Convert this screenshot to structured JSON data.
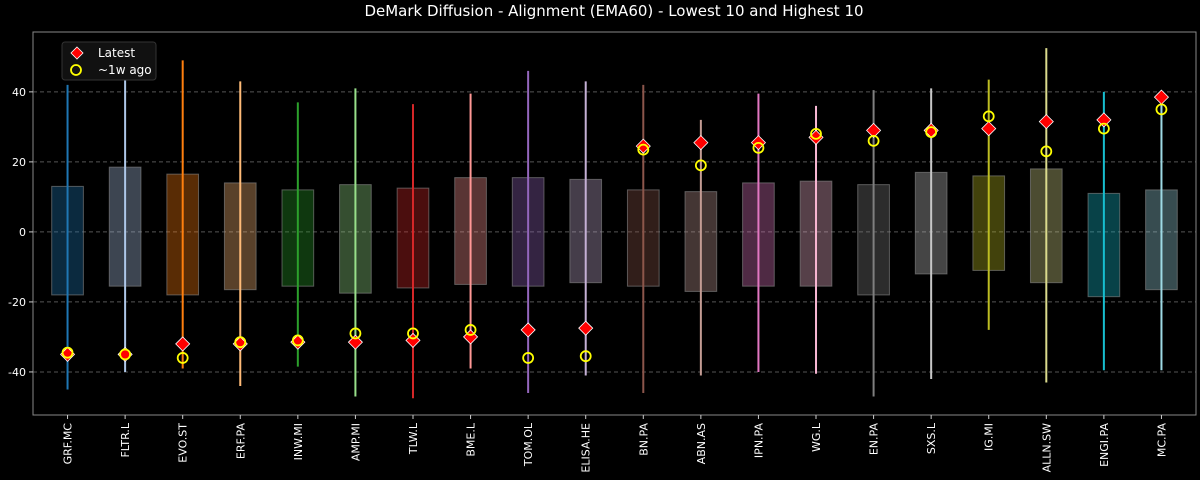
{
  "chart_data": {
    "type": "box-range",
    "title": "DeMark Diffusion - Alignment (EMA60) - Lowest 10 and Highest 10",
    "xlabel": "",
    "ylabel": "",
    "ylim": [
      -52.3,
      57.1
    ],
    "yticks": [
      -40,
      -20,
      0,
      20,
      40
    ],
    "grid": true,
    "legend": {
      "placement": "top-left",
      "entries": [
        {
          "label": "Latest",
          "marker": "diamond",
          "color": "#ff0000"
        },
        {
          "label": "~1w ago",
          "marker": "circle-open",
          "color": "#ffff00"
        }
      ]
    },
    "categories": [
      "GRF.MC",
      "FLTR.L",
      "EVO.ST",
      "ERF.PA",
      "INW.MI",
      "AMP.MI",
      "TLW.L",
      "BME.L",
      "TOM.OL",
      "ELISA.HE",
      "BN.PA",
      "ABN.AS",
      "IPN.PA",
      "WG.L",
      "EN.PA",
      "SXS.L",
      "IG.MI",
      "ALLN.SW",
      "ENGI.PA",
      "MC.PA"
    ],
    "colors": [
      "#1f77b4",
      "#aec7e8",
      "#ff7f0e",
      "#ffbb78",
      "#2ca02c",
      "#98df8a",
      "#d62728",
      "#ff9896",
      "#9467bd",
      "#c5b0d5",
      "#8c564b",
      "#c49c94",
      "#e377c2",
      "#f7b6d2",
      "#7f7f7f",
      "#c7c7c7",
      "#bcbd22",
      "#dbdb8d",
      "#17becf",
      "#9edae5"
    ],
    "range_max": [
      42,
      45,
      49,
      43,
      37,
      41,
      36.5,
      39.5,
      46,
      43,
      42,
      32,
      39.5,
      36,
      40.5,
      41,
      43.5,
      52.5,
      40,
      40
    ],
    "range_min": [
      -45,
      -40,
      -39,
      -44,
      -38.5,
      -47,
      -47.5,
      -39,
      -46,
      -41,
      -46,
      -41,
      -40,
      -40.5,
      -47,
      -42,
      -28,
      -43,
      -39.5,
      -39.5
    ],
    "box_high": [
      13,
      18.5,
      16.5,
      14,
      12,
      13.5,
      12.5,
      15.5,
      15.5,
      15,
      12,
      11.5,
      14,
      14.5,
      13.5,
      17,
      16,
      18,
      11,
      12
    ],
    "box_low": [
      -18,
      -15.5,
      -18,
      -16.5,
      -15.5,
      -17.5,
      -16,
      -15,
      -15.5,
      -14.5,
      -15.5,
      -17,
      -15.5,
      -15.5,
      -18,
      -12,
      -11,
      -14.5,
      -18.5,
      -16.5
    ],
    "latest": [
      -35,
      -35,
      -32,
      -32,
      -31.5,
      -31.5,
      -31,
      -30,
      -28,
      -27.5,
      24.5,
      25.5,
      25.5,
      27,
      29,
      29,
      29.5,
      31.5,
      32,
      38.5
    ],
    "week_ago": [
      -34.5,
      -35,
      -36,
      -31.5,
      -31,
      -29,
      -29,
      -28,
      -36,
      -35.5,
      23.5,
      19,
      24,
      28,
      26,
      28.5,
      33,
      23,
      29.5,
      35
    ]
  }
}
